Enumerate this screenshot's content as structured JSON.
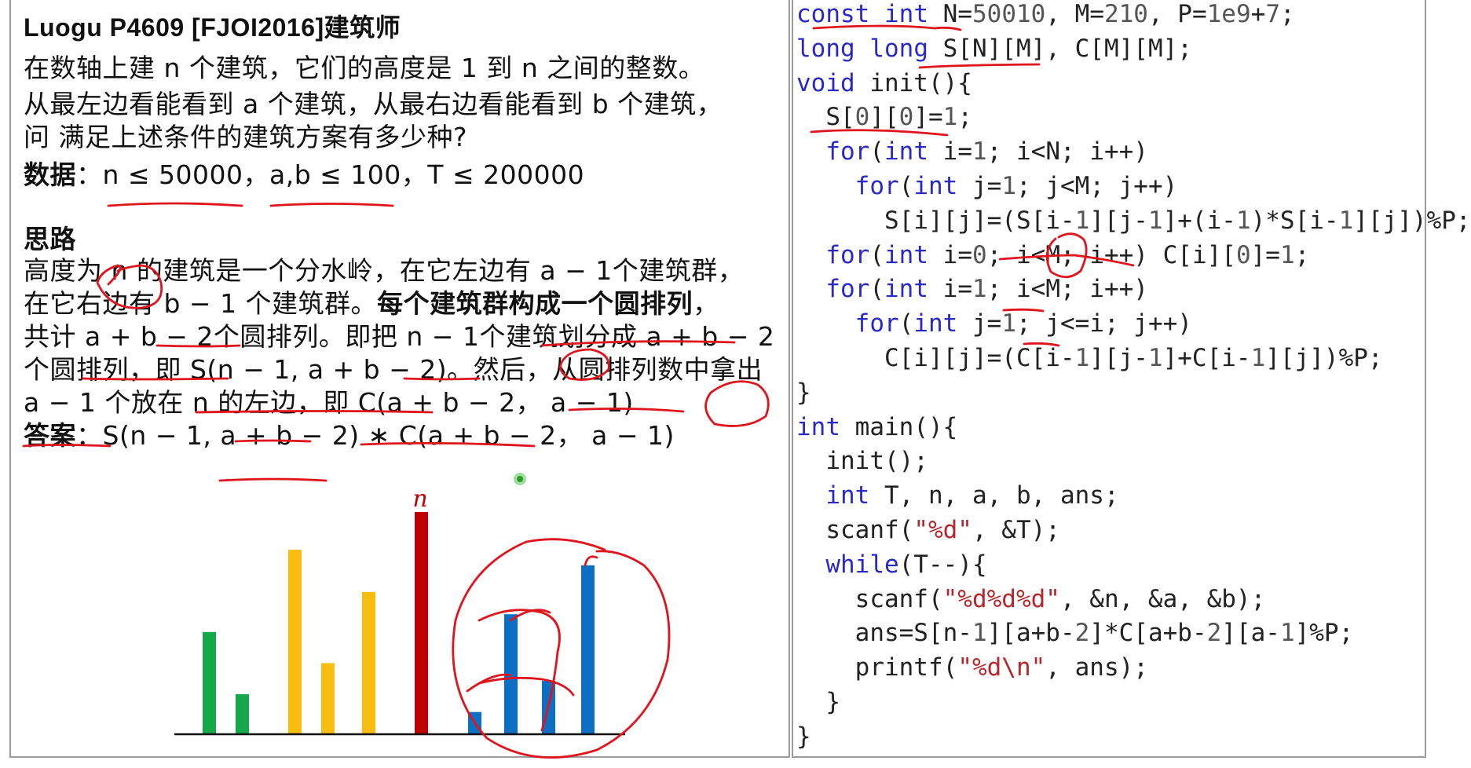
{
  "left": {
    "title": "Luogu P4609 [FJOI2016]建筑师",
    "problem": [
      "在数轴上建 n 个建筑，它们的高度是 1 到 n 之间的整数。",
      "从最左边看能看到 a 个建筑，从最右边看能看到 b 个建筑，",
      "问 满足上述条件的建筑方案有多少种?"
    ],
    "data_label": "数据",
    "data_text": "：n ≤ 50000，a,b ≤ 100，T ≤ 200000",
    "idea_heading": "思路",
    "idea": [
      "高度为 n 的建筑是一个分水岭，在它左边有 a − 1个建筑群，",
      "在它右边有 b − 1 个建筑群。",
      "每个建筑群构成一个圆排列",
      "，",
      "共计 a + b − 2个圆排列。即把 n − 1个建筑划分成 a + b − 2",
      "个圆排列，即 S(n − 1, a + b − 2)。然后，从圆排列数中拿出",
      "a − 1 个放在 n 的左边，即 C(a + b − 2， a − 1)"
    ],
    "answer_label": "答案",
    "answer_text": "：S(n − 1, a + b − 2) ∗ C(a + b − 2， a − 1)"
  },
  "code": [
    "const int N=50010, M=210, P=1e9+7;",
    "long long S[N][M], C[M][M];",
    "void init(){",
    "  S[0][0]=1;",
    "  for(int i=1; i<N; i++)",
    "    for(int j=1; j<M; j++)",
    "      S[i][j]=(S[i-1][j-1]+(i-1)*S[i-1][j])%P;",
    "  for(int i=0; i<M; i++) C[i][0]=1;",
    "  for(int i=1; i<M; i++)",
    "    for(int j=1; j<=i; j++)",
    "      C[i][j]=(C[i-1][j-1]+C[i-1][j])%P;",
    "}",
    "int main(){",
    "  init();",
    "  int T, n, a, b, ans;",
    "  scanf(\"%d\", &T);",
    "  while(T--){",
    "    scanf(\"%d%d%d\", &n, &a, &b);",
    "    ans=S[n-1][a+b-2]*C[a+b-2][a-1]%P;",
    "    printf(\"%d\\n\", ans);",
    "  }",
    "}"
  ],
  "chart_data": {
    "type": "bar",
    "title": "",
    "xlabel": "",
    "ylabel": "",
    "peak_label": "n",
    "bars": [
      {
        "value": 0.46,
        "color": "#15a84a"
      },
      {
        "value": 0.18,
        "color": "#15a84a"
      },
      {
        "value": 0.83,
        "color": "#f7be0f"
      },
      {
        "value": 0.32,
        "color": "#f7be0f"
      },
      {
        "value": 0.64,
        "color": "#f7be0f"
      },
      {
        "value": 1.0,
        "color": "#c00000"
      },
      {
        "value": 0.1,
        "color": "#0d6fc2"
      },
      {
        "value": 0.54,
        "color": "#0d6fc2"
      },
      {
        "value": 0.24,
        "color": "#0d6fc2"
      },
      {
        "value": 0.76,
        "color": "#0d6fc2"
      }
    ]
  },
  "colors": {
    "ink": "#e0141c",
    "keyword": "#2929c8",
    "string": "#b8262b",
    "highlight_dot": "#5ac85a"
  }
}
